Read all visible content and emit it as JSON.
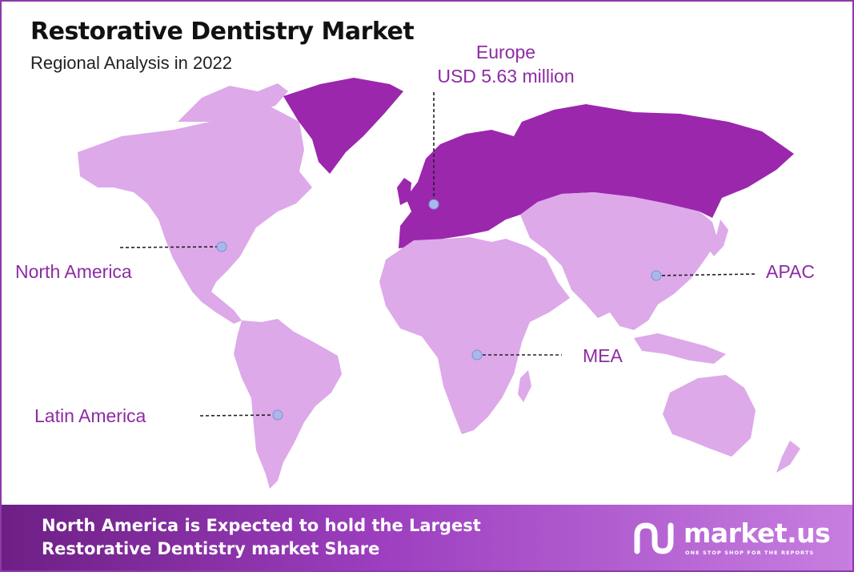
{
  "header": {
    "title": "Restorative Dentistry Market",
    "subtitle": "Regional Analysis in 2022"
  },
  "regions": {
    "europe": {
      "name": "Europe",
      "value": "USD 5.63 million",
      "color": "#9b27ad"
    },
    "north_america": {
      "name": "North America",
      "color": "#dda9e9"
    },
    "latin_america": {
      "name": "Latin America",
      "color": "#dda9e9"
    },
    "mea": {
      "name": "MEA",
      "color": "#dda9e9"
    },
    "apac": {
      "name": "APAC",
      "color": "#dda9e9"
    }
  },
  "colors": {
    "highlight_region": "#9b27ad",
    "other_regions": "#dda9e9",
    "label_text": "#8e2ba3",
    "marker": "#a9b8ea",
    "frame": "#8e3aa8"
  },
  "footer": {
    "line1": "North America is Expected to hold the Largest",
    "line2": "Restorative Dentistry market Share"
  },
  "brand": {
    "name": "market.us",
    "tagline": "ONE STOP SHOP FOR THE REPORTS"
  }
}
